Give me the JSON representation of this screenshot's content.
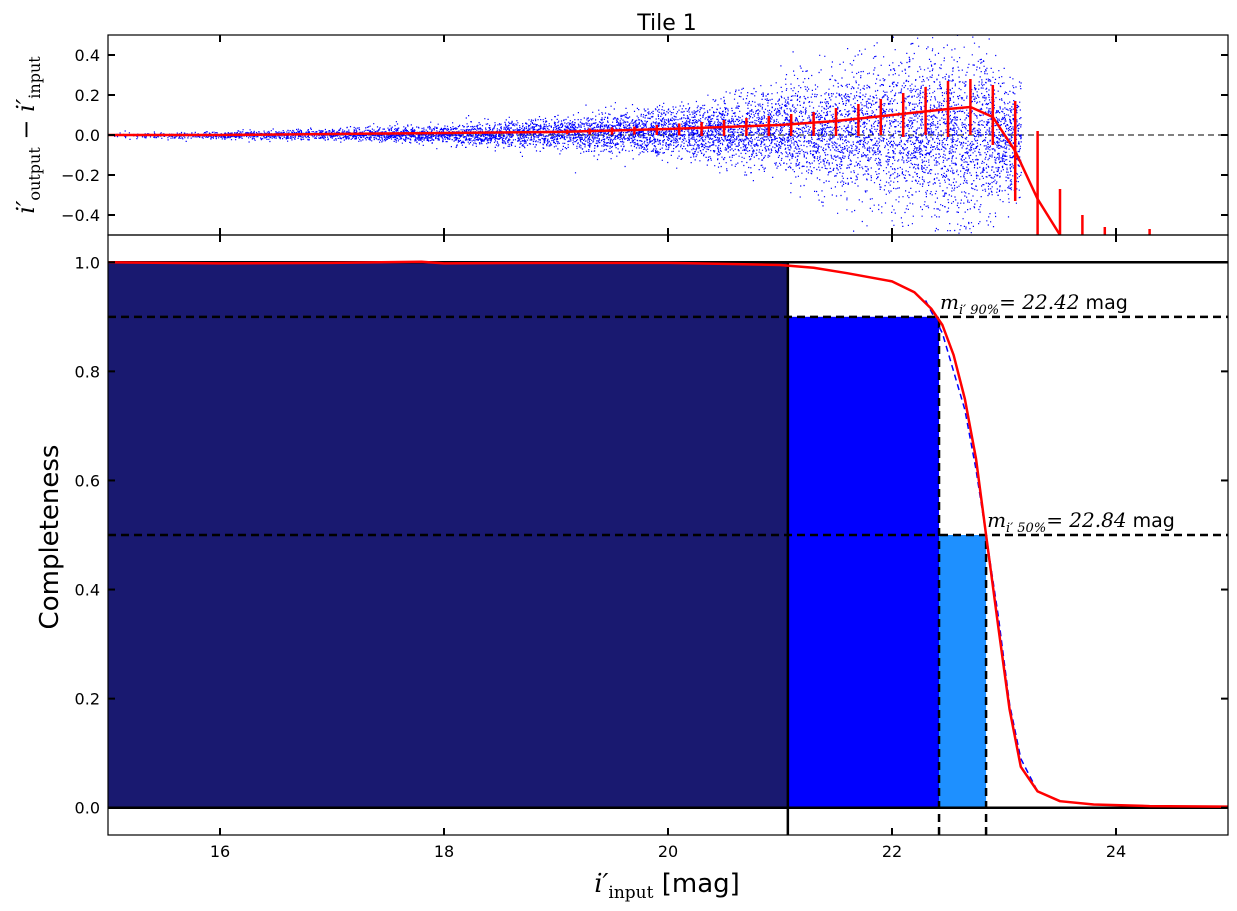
{
  "chart_data": [
    {
      "panel": "residuals",
      "type": "scatter",
      "title": "Tile 1",
      "ylabel": "i′output − i′input",
      "ylabel_parts": {
        "base": "i′",
        "sub1": "output",
        "minus": " − ",
        "sub2": "input"
      },
      "xlim": [
        15,
        25
      ],
      "ylim": [
        -0.5,
        0.5
      ],
      "yticks": [
        "0.4",
        "0.2",
        "0.0",
        "−0.2",
        "−0.4"
      ],
      "ytick_values": [
        0.4,
        0.2,
        0.0,
        -0.2,
        -0.4
      ],
      "reference_line": 0.0,
      "scatter_color": "#0000ff",
      "scatter_envelope": {
        "x": [
          15.0,
          16.0,
          17.0,
          18.0,
          19.0,
          20.0,
          20.5,
          21.0,
          21.5,
          22.0,
          22.5,
          22.8,
          23.0
        ],
        "lower": [
          -0.02,
          -0.02,
          -0.03,
          -0.05,
          -0.08,
          -0.12,
          -0.16,
          -0.22,
          -0.3,
          -0.42,
          -0.5,
          -0.5,
          -0.35
        ],
        "upper": [
          0.02,
          0.02,
          0.04,
          0.06,
          0.1,
          0.15,
          0.2,
          0.27,
          0.35,
          0.45,
          0.5,
          0.5,
          0.3
        ]
      },
      "median_line": {
        "color": "#ff0000",
        "x": [
          15.0,
          16.0,
          17.0,
          18.0,
          19.0,
          20.0,
          21.0,
          21.5,
          22.0,
          22.5,
          22.7,
          22.9,
          23.1,
          23.3,
          23.5
        ],
        "y": [
          0.0,
          0.0,
          0.005,
          0.01,
          0.015,
          0.03,
          0.05,
          0.07,
          0.1,
          0.13,
          0.14,
          0.09,
          -0.08,
          -0.32,
          -0.5
        ]
      },
      "error_bars": {
        "color": "#ff0000",
        "x": [
          19.1,
          19.3,
          19.5,
          19.7,
          19.9,
          20.1,
          20.3,
          20.5,
          20.7,
          20.9,
          21.1,
          21.3,
          21.5,
          21.7,
          21.9,
          22.1,
          22.3,
          22.5,
          22.7,
          22.9,
          23.1,
          23.3,
          23.5,
          23.7,
          23.9,
          24.3
        ],
        "center": [
          0.015,
          0.018,
          0.02,
          0.022,
          0.025,
          0.028,
          0.03,
          0.035,
          0.04,
          0.045,
          0.05,
          0.055,
          0.065,
          0.075,
          0.09,
          0.1,
          0.12,
          0.13,
          0.14,
          0.1,
          -0.08,
          -0.3,
          -0.45,
          -0.48,
          -0.49,
          -0.49
        ],
        "half_width": [
          0.012,
          0.015,
          0.018,
          0.02,
          0.025,
          0.03,
          0.035,
          0.04,
          0.045,
          0.05,
          0.055,
          0.06,
          0.07,
          0.08,
          0.09,
          0.11,
          0.12,
          0.14,
          0.14,
          0.15,
          0.25,
          0.32,
          0.18,
          0.08,
          0.03,
          0.02
        ]
      }
    },
    {
      "panel": "completeness",
      "type": "line",
      "xlabel": "i′input [mag]",
      "xlabel_parts": {
        "base": "i′",
        "sub": "input",
        "unit": " [mag]"
      },
      "ylabel": "Completeness",
      "xlim": [
        15,
        25
      ],
      "ylim": [
        -0.05,
        1.05
      ],
      "xticks": [
        "16",
        "18",
        "20",
        "22",
        "24"
      ],
      "xtick_values": [
        16,
        18,
        20,
        22,
        24
      ],
      "yticks": [
        "1.0",
        "0.8",
        "0.6",
        "0.4",
        "0.2",
        "0.0"
      ],
      "ytick_values": [
        1.0,
        0.8,
        0.6,
        0.4,
        0.2,
        0.0
      ],
      "regions": [
        {
          "x0": 15.0,
          "x1": 21.07,
          "y": 1.0,
          "color": "#191970"
        },
        {
          "x0": 21.07,
          "x1": 22.42,
          "y": 0.9,
          "color": "#0000ff"
        },
        {
          "x0": 22.42,
          "x1": 22.84,
          "y": 0.5,
          "color": "#1e90ff"
        }
      ],
      "completeness_curve": {
        "color": "#ff0000",
        "x": [
          15.0,
          16.0,
          17.0,
          17.8,
          18.0,
          19.0,
          20.0,
          20.5,
          21.0,
          21.3,
          21.6,
          22.0,
          22.2,
          22.35,
          22.45,
          22.55,
          22.65,
          22.75,
          22.84,
          22.95,
          23.05,
          23.15,
          23.3,
          23.5,
          23.8,
          24.3,
          25.0
        ],
        "y": [
          1.0,
          0.998,
          0.999,
          1.001,
          0.998,
          0.999,
          0.999,
          0.997,
          0.995,
          0.99,
          0.98,
          0.965,
          0.945,
          0.915,
          0.885,
          0.83,
          0.75,
          0.64,
          0.5,
          0.33,
          0.18,
          0.075,
          0.03,
          0.012,
          0.006,
          0.003,
          0.002
        ]
      },
      "fit_curve": {
        "color": "#0000ff",
        "style": "dashed",
        "x": [
          22.3,
          22.45,
          22.55,
          22.65,
          22.75,
          22.84,
          22.95,
          23.05,
          23.15,
          23.3
        ],
        "y": [
          0.93,
          0.87,
          0.8,
          0.73,
          0.62,
          0.5,
          0.35,
          0.19,
          0.09,
          0.03
        ]
      },
      "horizontal_lines": [
        0.9,
        0.5
      ],
      "vertical_lines": [
        21.07,
        22.42,
        22.84
      ],
      "annotations": [
        {
          "name": "m90",
          "sym": "m",
          "sub": "i′ 90%",
          "value": "= 22.42",
          "unit": " mag",
          "x": 22.42,
          "y": 0.9
        },
        {
          "name": "m50",
          "sym": "m",
          "sub": "i′ 50%",
          "value": "= 22.84",
          "unit": " mag",
          "x": 22.84,
          "y": 0.5
        }
      ]
    }
  ]
}
